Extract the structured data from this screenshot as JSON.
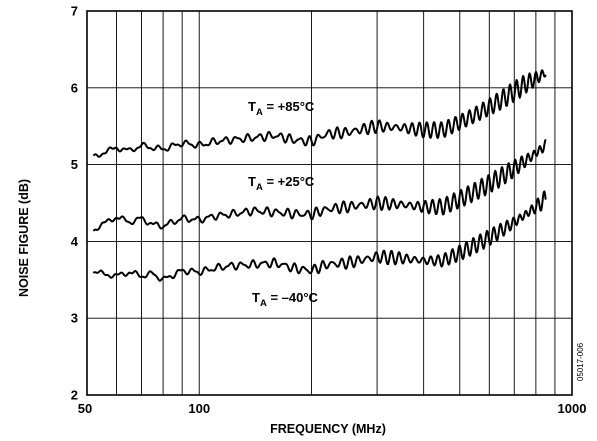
{
  "chart_data": {
    "type": "line",
    "title": "",
    "xlabel": "FREQUENCY (MHz)",
    "ylabel": "NOISE FIGURE (dB)",
    "xscale": "log",
    "xlim": [
      50,
      1000
    ],
    "ylim": [
      2,
      7
    ],
    "x_ticks": [
      {
        "value": 50,
        "label": "50"
      },
      {
        "value": 100,
        "label": "100"
      },
      {
        "value": 1000,
        "label": "1000"
      }
    ],
    "y_ticks": [
      {
        "value": 2,
        "label": "2"
      },
      {
        "value": 3,
        "label": "3"
      },
      {
        "value": 4,
        "label": "4"
      },
      {
        "value": 5,
        "label": "5"
      },
      {
        "value": 6,
        "label": "6"
      },
      {
        "value": 7,
        "label": "7"
      }
    ],
    "grid": true,
    "legend": "none",
    "series": [
      {
        "label_main": "T",
        "label_sub": "A",
        "label_rest": " = +85°C",
        "x": [
          52,
          55,
          60,
          65,
          70,
          75,
          80,
          90,
          100,
          110,
          120,
          140,
          160,
          180,
          200,
          220,
          250,
          300,
          350,
          400,
          450,
          500,
          550,
          600,
          650,
          700,
          750,
          800,
          850
        ],
        "y": [
          5.1,
          5.15,
          5.22,
          5.18,
          5.25,
          5.22,
          5.2,
          5.28,
          5.25,
          5.3,
          5.32,
          5.35,
          5.38,
          5.32,
          5.3,
          5.4,
          5.42,
          5.5,
          5.48,
          5.45,
          5.45,
          5.55,
          5.65,
          5.75,
          5.85,
          5.95,
          6.05,
          6.12,
          6.2
        ]
      },
      {
        "label_main": "T",
        "label_sub": "A",
        "label_rest": " = +25°C",
        "x": [
          52,
          55,
          60,
          65,
          70,
          75,
          80,
          90,
          100,
          110,
          120,
          140,
          160,
          180,
          200,
          220,
          250,
          300,
          350,
          400,
          450,
          500,
          550,
          600,
          650,
          700,
          750,
          800,
          850
        ],
        "y": [
          4.15,
          4.22,
          4.32,
          4.25,
          4.3,
          4.22,
          4.2,
          4.3,
          4.28,
          4.33,
          4.35,
          4.4,
          4.38,
          4.36,
          4.35,
          4.42,
          4.45,
          4.5,
          4.48,
          4.45,
          4.45,
          4.55,
          4.65,
          4.75,
          4.85,
          4.95,
          5.05,
          5.15,
          5.25
        ]
      },
      {
        "label_main": "T",
        "label_sub": "A",
        "label_rest": " = –40°C",
        "x": [
          52,
          55,
          60,
          65,
          70,
          75,
          80,
          90,
          100,
          110,
          120,
          140,
          160,
          180,
          200,
          220,
          250,
          300,
          350,
          400,
          450,
          500,
          550,
          600,
          650,
          700,
          750,
          800,
          850
        ],
        "y": [
          3.6,
          3.58,
          3.55,
          3.6,
          3.55,
          3.58,
          3.5,
          3.62,
          3.6,
          3.65,
          3.68,
          3.7,
          3.72,
          3.65,
          3.62,
          3.7,
          3.72,
          3.8,
          3.78,
          3.75,
          3.75,
          3.85,
          3.95,
          4.05,
          4.15,
          4.25,
          4.35,
          4.45,
          4.55
        ]
      }
    ],
    "figure_id": "05017-006"
  }
}
